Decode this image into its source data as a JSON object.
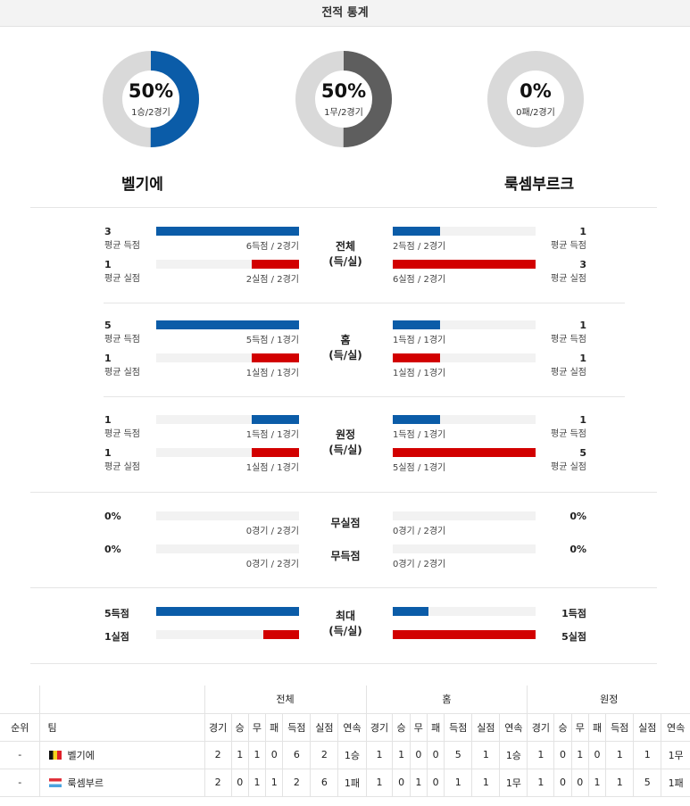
{
  "title": "전적 통계",
  "donuts": [
    {
      "pct": "50%",
      "sub": "1승/2경기",
      "value": 0.5,
      "color": "#0b5ca8"
    },
    {
      "pct": "50%",
      "sub": "1무/2경기",
      "value": 0.5,
      "color": "#5e5e5e"
    },
    {
      "pct": "0%",
      "sub": "0패/2경기",
      "value": 0.0,
      "color": "#0b5ca8"
    }
  ],
  "teams": {
    "home": "벨기에",
    "away": "룩셈부르크"
  },
  "colors": {
    "blue": "#0b5ca8",
    "red": "#d20000",
    "track": "#f2f2f2",
    "donut_bg": "#d9d9d9"
  },
  "sections": [
    {
      "mid": [
        "전체",
        "(득/실)"
      ],
      "home": [
        {
          "val": "3",
          "lbl": "평균 득점",
          "cap": "6득점 / 2경기",
          "ratio": 1.0,
          "color": "blue"
        },
        {
          "val": "1",
          "lbl": "평균 실점",
          "cap": "2실점 / 2경기",
          "ratio": 0.33,
          "color": "red"
        }
      ],
      "away": [
        {
          "val": "1",
          "lbl": "평균 득점",
          "cap": "2득점 / 2경기",
          "ratio": 0.33,
          "color": "blue"
        },
        {
          "val": "3",
          "lbl": "평균 실점",
          "cap": "6실점 / 2경기",
          "ratio": 1.0,
          "color": "red"
        }
      ]
    },
    {
      "mid": [
        "홈",
        "(득/실)"
      ],
      "home": [
        {
          "val": "5",
          "lbl": "평균 득점",
          "cap": "5득점 / 1경기",
          "ratio": 1.0,
          "color": "blue"
        },
        {
          "val": "1",
          "lbl": "평균 실점",
          "cap": "1실점 / 1경기",
          "ratio": 0.33,
          "color": "red"
        }
      ],
      "away": [
        {
          "val": "1",
          "lbl": "평균 득점",
          "cap": "1득점 / 1경기",
          "ratio": 0.33,
          "color": "blue"
        },
        {
          "val": "1",
          "lbl": "평균 실점",
          "cap": "1실점 / 1경기",
          "ratio": 0.33,
          "color": "red"
        }
      ]
    },
    {
      "mid": [
        "원정",
        "(득/실)"
      ],
      "home": [
        {
          "val": "1",
          "lbl": "평균 득점",
          "cap": "1득점 / 1경기",
          "ratio": 0.33,
          "color": "blue"
        },
        {
          "val": "1",
          "lbl": "평균 실점",
          "cap": "1실점 / 1경기",
          "ratio": 0.33,
          "color": "red"
        }
      ],
      "away": [
        {
          "val": "1",
          "lbl": "평균 득점",
          "cap": "1득점 / 1경기",
          "ratio": 0.33,
          "color": "blue"
        },
        {
          "val": "5",
          "lbl": "평균 실점",
          "cap": "5실점 / 1경기",
          "ratio": 1.0,
          "color": "red"
        }
      ]
    }
  ],
  "clean": [
    {
      "mid": "무실점",
      "home_val": "0%",
      "home_cap": "0경기 / 2경기",
      "away_val": "0%",
      "away_cap": "0경기 / 2경기"
    },
    {
      "mid": "무득점",
      "home_val": "0%",
      "home_cap": "0경기 / 2경기",
      "away_val": "0%",
      "away_cap": "0경기 / 2경기"
    }
  ],
  "max": {
    "mid": [
      "최대",
      "(득/실)"
    ],
    "home": [
      {
        "val": "5득점",
        "ratio": 1.0,
        "color": "blue"
      },
      {
        "val": "1실점",
        "ratio": 0.25,
        "color": "red"
      }
    ],
    "away": [
      {
        "val": "1득점",
        "ratio": 0.25,
        "color": "blue"
      },
      {
        "val": "5실점",
        "ratio": 1.0,
        "color": "red"
      }
    ]
  },
  "table": {
    "groups": [
      "전체",
      "홈",
      "원정"
    ],
    "col_rank": "순위",
    "col_team": "팀",
    "cols": [
      "경기",
      "승",
      "무",
      "패",
      "득점",
      "실점",
      "연속"
    ],
    "rows": [
      {
        "rank": "-",
        "flag": "belgium",
        "team": "벨기에",
        "cells": [
          "2",
          "1",
          "1",
          "0",
          "6",
          "2",
          "1승",
          "1",
          "1",
          "0",
          "0",
          "5",
          "1",
          "1승",
          "1",
          "0",
          "1",
          "0",
          "1",
          "1",
          "1무"
        ]
      },
      {
        "rank": "-",
        "flag": "luxembourg",
        "team": "룩셈부르",
        "cells": [
          "2",
          "0",
          "1",
          "1",
          "2",
          "6",
          "1패",
          "1",
          "0",
          "1",
          "0",
          "1",
          "1",
          "1무",
          "1",
          "0",
          "0",
          "1",
          "1",
          "5",
          "1패"
        ]
      }
    ]
  }
}
